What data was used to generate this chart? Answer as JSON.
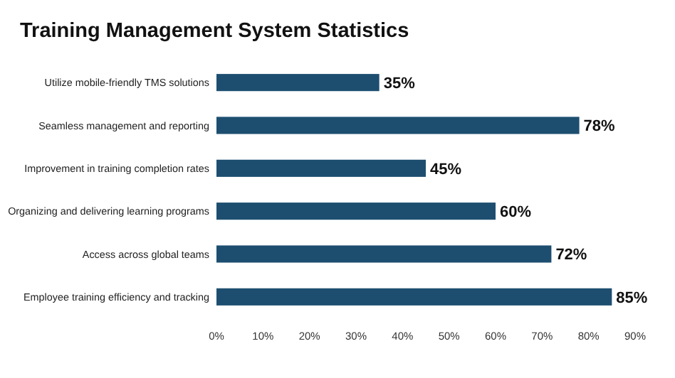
{
  "chart_data": {
    "type": "bar",
    "orientation": "horizontal",
    "title": "Training Management System Statistics",
    "categories": [
      "Utilize mobile-friendly TMS solutions",
      "Seamless management and reporting",
      "Improvement in training completion rates",
      "Organizing and delivering learning programs",
      "Access across global teams",
      "Employee training efficiency and tracking"
    ],
    "values": [
      35,
      78,
      45,
      60,
      72,
      85
    ],
    "color": "#1d4e70",
    "value_labels": [
      "35%",
      "78%",
      "45%",
      "60%",
      "72%",
      "85%"
    ],
    "xlim": [
      0,
      90
    ],
    "xticks": [
      {
        "value": 0,
        "label": "0%"
      },
      {
        "value": 10,
        "label": "10%"
      },
      {
        "value": 20,
        "label": "20%"
      },
      {
        "value": 30,
        "label": "30%"
      },
      {
        "value": 40,
        "label": "40%"
      },
      {
        "value": 50,
        "label": "50%"
      },
      {
        "value": 60,
        "label": "60%"
      },
      {
        "value": 70,
        "label": "70%"
      },
      {
        "value": 80,
        "label": "80%"
      },
      {
        "value": 90,
        "label": "90%"
      }
    ],
    "grid": false
  }
}
